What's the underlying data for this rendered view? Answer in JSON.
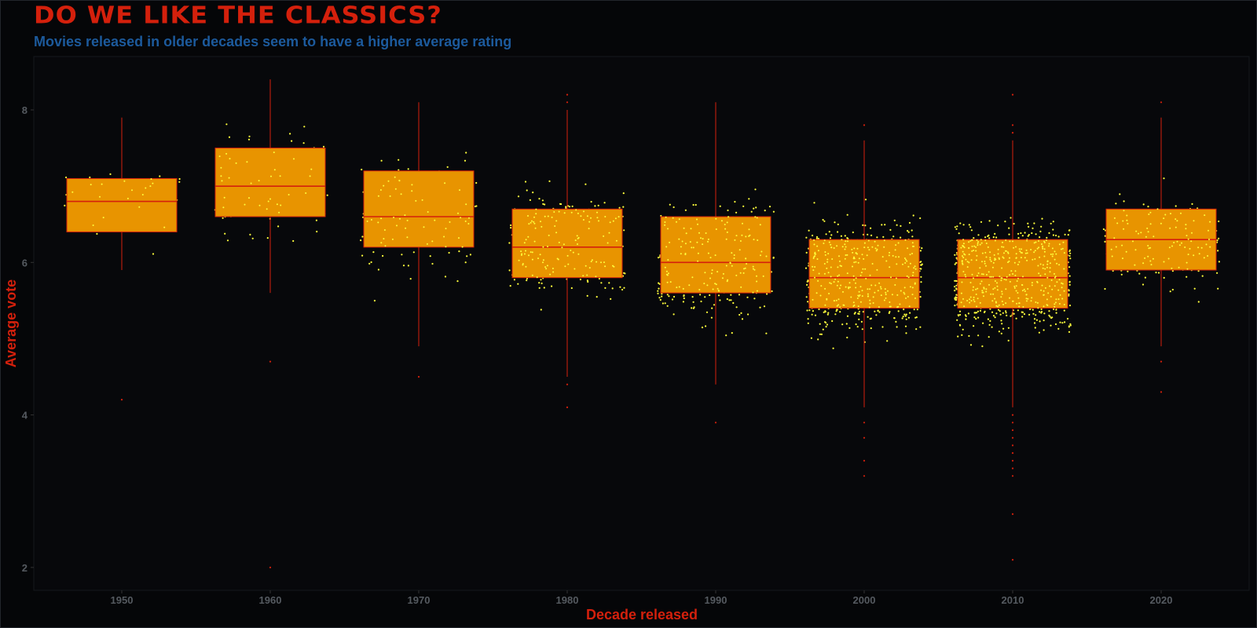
{
  "title": "DO WE LIKE THE CLASSICS?",
  "subtitle": "Movies released in older decades seem to have a higher average rating",
  "colors": {
    "background": "#050608",
    "box_fill": "#e89400",
    "box_line": "#d4200c",
    "point": "#ffff3c",
    "title": "#d4200c",
    "subtitle": "#1c5a9c",
    "tick": "#555a60"
  },
  "chart_data": {
    "type": "box",
    "xlabel": "Decade released",
    "ylabel": "Average vote",
    "categories": [
      "1950",
      "1960",
      "1970",
      "1980",
      "1990",
      "2000",
      "2010",
      "2020"
    ],
    "ylim": [
      1.7,
      8.7
    ],
    "yticks": [
      2,
      4,
      6,
      8
    ],
    "grid": false,
    "boxes": [
      {
        "decade": "1950",
        "q1": 6.4,
        "median": 6.8,
        "q3": 7.1,
        "whisker_low": 5.9,
        "whisker_high": 7.9,
        "outliers": [
          4.2
        ],
        "n_points": 45
      },
      {
        "decade": "1960",
        "q1": 6.6,
        "median": 7.0,
        "q3": 7.5,
        "whisker_low": 5.6,
        "whisker_high": 8.4,
        "outliers": [
          4.7,
          2.0
        ],
        "n_points": 90
      },
      {
        "decade": "1970",
        "q1": 6.2,
        "median": 6.6,
        "q3": 7.2,
        "whisker_low": 4.9,
        "whisker_high": 8.1,
        "outliers": [
          4.5
        ],
        "n_points": 140
      },
      {
        "decade": "1980",
        "q1": 5.8,
        "median": 6.2,
        "q3": 6.7,
        "whisker_low": 4.5,
        "whisker_high": 8.0,
        "outliers": [
          8.2,
          8.1,
          4.4,
          4.1
        ],
        "n_points": 300
      },
      {
        "decade": "1990",
        "q1": 5.6,
        "median": 6.0,
        "q3": 6.6,
        "whisker_low": 4.4,
        "whisker_high": 8.1,
        "outliers": [
          3.9
        ],
        "n_points": 340
      },
      {
        "decade": "2000",
        "q1": 5.4,
        "median": 5.8,
        "q3": 6.3,
        "whisker_low": 4.1,
        "whisker_high": 7.6,
        "outliers": [
          7.8,
          3.9,
          3.7,
          3.4,
          3.2
        ],
        "n_points": 650
      },
      {
        "decade": "2010",
        "q1": 5.4,
        "median": 5.8,
        "q3": 6.3,
        "whisker_low": 4.1,
        "whisker_high": 7.6,
        "outliers": [
          8.2,
          7.8,
          7.7,
          4.0,
          3.9,
          3.8,
          3.7,
          3.6,
          3.5,
          3.4,
          3.3,
          3.2,
          2.7,
          2.1
        ],
        "n_points": 900
      },
      {
        "decade": "2020",
        "q1": 5.9,
        "median": 6.3,
        "q3": 6.7,
        "whisker_low": 4.9,
        "whisker_high": 7.9,
        "outliers": [
          8.1,
          4.7,
          4.3
        ],
        "n_points": 230
      }
    ]
  }
}
